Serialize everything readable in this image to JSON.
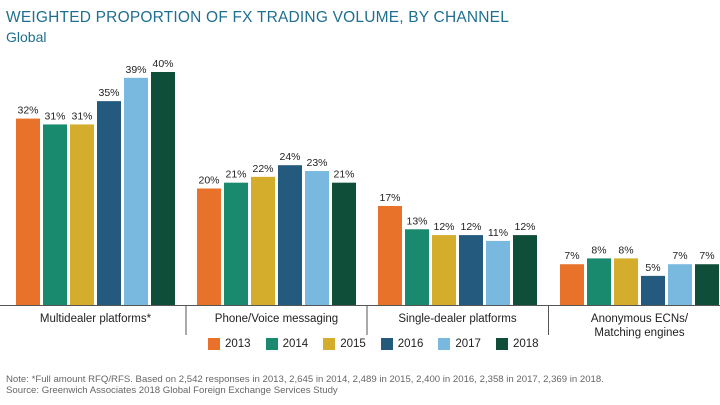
{
  "header": {
    "title": "WEIGHTED PROPORTION OF FX TRADING VOLUME, BY CHANNEL",
    "subtitle": "Global"
  },
  "chart_data": {
    "type": "bar",
    "categories": [
      "Multidealer platforms*",
      "Phone/Voice messaging",
      "Single-dealer platforms",
      "Anonymous ECNs/\nMatching engines"
    ],
    "series": [
      {
        "name": "2013",
        "color": "#e8722a",
        "values": [
          32,
          20,
          17,
          7
        ]
      },
      {
        "name": "2014",
        "color": "#1a8a6e",
        "values": [
          31,
          21,
          13,
          8
        ]
      },
      {
        "name": "2015",
        "color": "#d3ad2b",
        "values": [
          31,
          22,
          12,
          8
        ]
      },
      {
        "name": "2016",
        "color": "#245a7e",
        "values": [
          35,
          24,
          12,
          5
        ]
      },
      {
        "name": "2017",
        "color": "#7ab9df",
        "values": [
          39,
          23,
          11,
          7
        ]
      },
      {
        "name": "2018",
        "color": "#0f4f3a",
        "values": [
          40,
          21,
          12,
          7
        ]
      }
    ],
    "value_suffix": "%",
    "ylim": [
      0,
      40
    ],
    "grid": false,
    "legend_position": "bottom"
  },
  "footer": {
    "note": "Note: *Full amount RFQ/RFS. Based on 2,542 responses in 2013, 2,645 in 2014, 2,489 in 2015, 2,400 in 2016, 2,358 in 2017, 2,369 in 2018.",
    "source": "Source: Greenwich Associates 2018 Global Foreign Exchange Services Study"
  }
}
